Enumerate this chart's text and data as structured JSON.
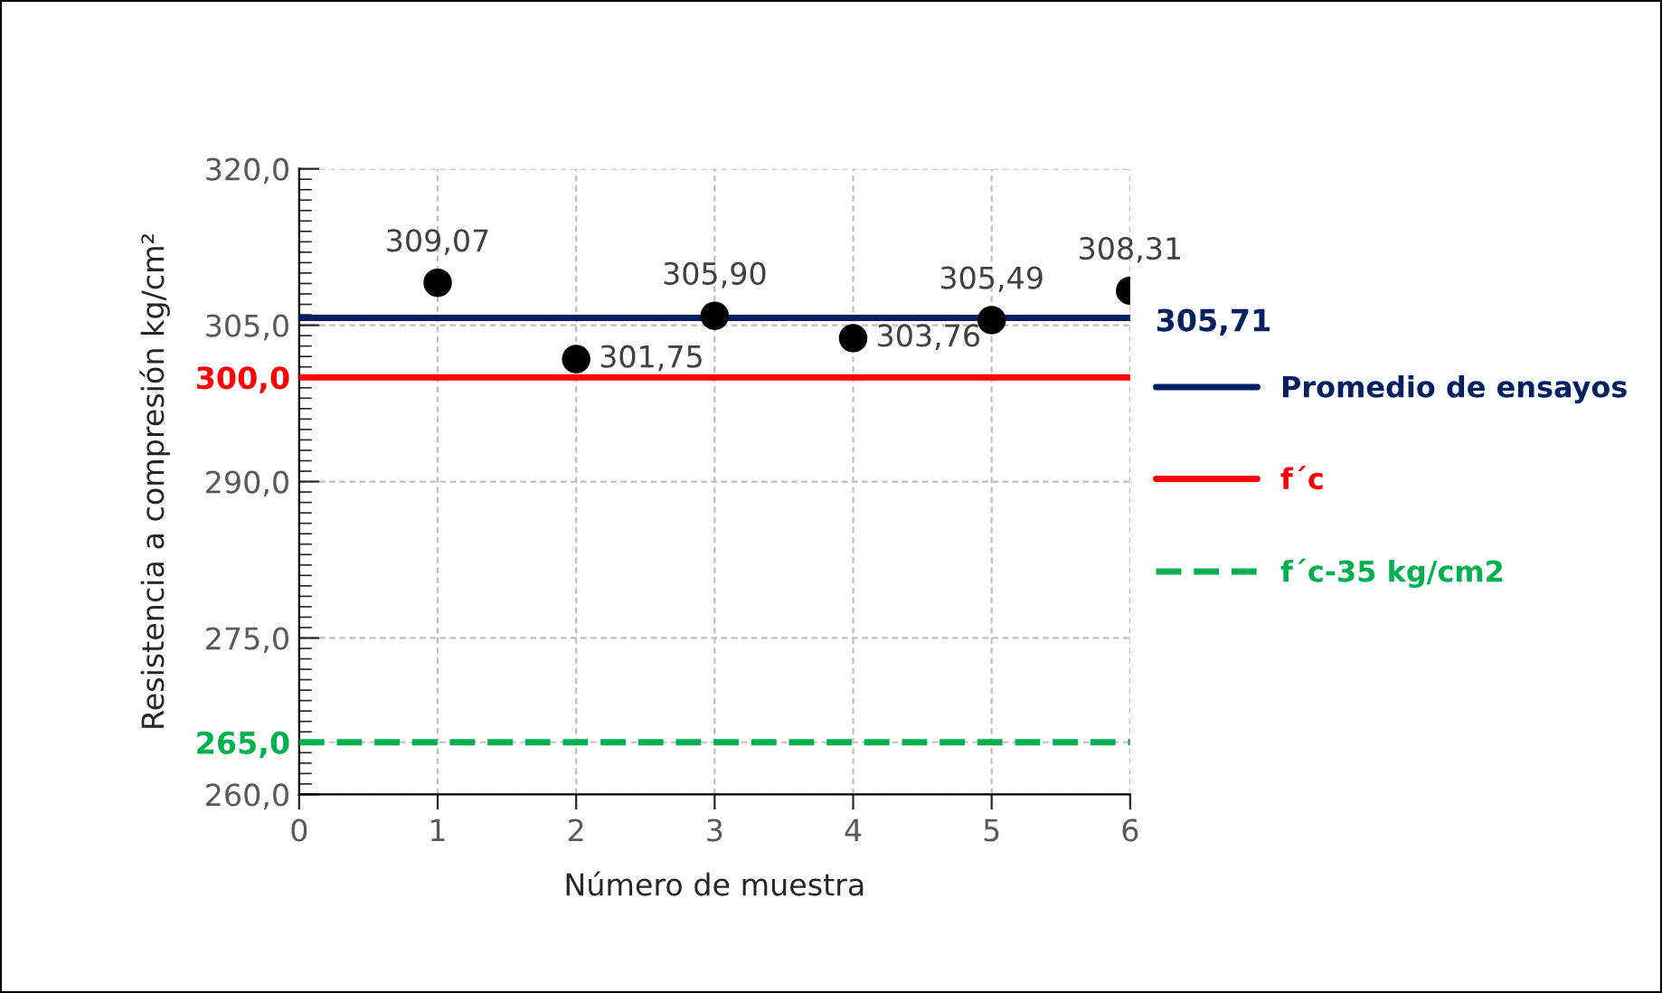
{
  "chart_data": {
    "type": "scatter",
    "xlabel": "Número de muestra",
    "ylabel": "Resistencia a compresión kg/cm²",
    "x": [
      1,
      2,
      3,
      4,
      5,
      6
    ],
    "series": [
      {
        "color": "#000000",
        "values": [
          309.07,
          301.75,
          305.9,
          303.76,
          305.49,
          308.31
        ],
        "value_labels": [
          "309,07",
          "301,75",
          "305,90",
          "303,76",
          "305,49",
          "308,31"
        ]
      }
    ],
    "marker": "circle",
    "xlim": [
      0,
      6
    ],
    "xticks": [
      0,
      1,
      2,
      3,
      4,
      5,
      6
    ],
    "ylim": [
      260,
      320
    ],
    "yticks": [
      {
        "value": 260,
        "label": "260,0"
      },
      {
        "value": 265,
        "label": "265,0"
      },
      {
        "value": 275,
        "label": "275,0"
      },
      {
        "value": 290,
        "label": "290,0"
      },
      {
        "value": 300,
        "label": "300,0"
      },
      {
        "value": 305,
        "label": "305,0"
      },
      {
        "value": 320,
        "label": "320,0"
      }
    ],
    "ref_lines": [
      {
        "axis": "y",
        "value": 305.71,
        "label": "Promedio de ensayos",
        "color": "#002060",
        "line_style": "solid"
      },
      {
        "axis": "y",
        "value": 300,
        "label": "f´c",
        "color": "#ff0000",
        "line_style": "solid"
      },
      {
        "axis": "y",
        "value": 265,
        "label": "f´c-35 kg/cm2",
        "color": "#00b050",
        "line_style": "dashed"
      }
    ],
    "annotations": [
      "305,71"
    ],
    "grid": true,
    "legend": "right"
  }
}
